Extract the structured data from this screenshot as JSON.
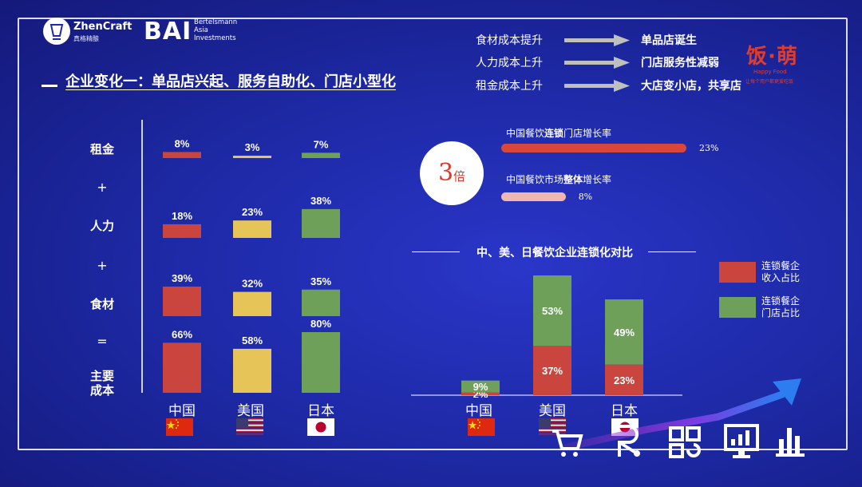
{
  "header": {
    "zhencraft_name": "ZhenCraft",
    "zhencraft_sub": "真格精酿",
    "bai_logo": "BAI",
    "bai_sub": [
      "Bertelsmann",
      "Asia",
      "Investments"
    ],
    "title": "企业变化一：单品店兴起、服务自助化、门店小型化"
  },
  "flows": [
    {
      "cause": "食材成本提升",
      "effect": "单品店诞生"
    },
    {
      "cause": "人力成本上升",
      "effect": "门店服务性减弱"
    },
    {
      "cause": "租金成本上升",
      "effect": "大店变小店，共享店"
    }
  ],
  "brand": {
    "name": "饭·萌",
    "sub": "Happy Food",
    "tagline": "让每个用户都更爱吃饭"
  },
  "colors": {
    "china": "#c9453d",
    "usa": "#e6c457",
    "japan": "#6ea05a",
    "bg": "#1e2aa8",
    "growth_bar": "#d9473a",
    "growth_bar_light": "#f0b7b2"
  },
  "growth": {
    "multiple_number": "3",
    "multiple_unit": "倍",
    "items": [
      {
        "label_pre": "中国餐饮",
        "label_bold": "连锁",
        "label_post": "门店增长率",
        "value_label": "23%",
        "value": 23
      },
      {
        "label_pre": "中国餐饮市场",
        "label_bold": "整体",
        "label_post": "增长率",
        "value_label": "8%",
        "value": 8
      }
    ]
  },
  "cost_chart": {
    "rows": [
      "租金",
      "+",
      "人力",
      "+",
      "食材",
      "=",
      "主要成本"
    ]
  },
  "chain_chart": {
    "title": "中、美、日餐饮企业连锁化对比",
    "legend": [
      "连锁餐企收入占比",
      "连锁餐企门店占比"
    ],
    "legend_lines": [
      [
        "连锁餐企",
        "收入占比"
      ],
      [
        "连锁餐企",
        "门店占比"
      ]
    ]
  },
  "countries": [
    "中国",
    "美国",
    "日本"
  ],
  "chart_data": [
    {
      "type": "bar",
      "title": "",
      "categories": [
        "中国",
        "美国",
        "日本"
      ],
      "panels": [
        {
          "name": "租金",
          "values": [
            8,
            3,
            7
          ],
          "labels": [
            "8%",
            "3%",
            "7%"
          ]
        },
        {
          "name": "人力",
          "values": [
            18,
            23,
            38
          ],
          "labels": [
            "18%",
            "23%",
            "38%"
          ]
        },
        {
          "name": "食材",
          "values": [
            39,
            32,
            35
          ],
          "labels": [
            "39%",
            "32%",
            "35%"
          ]
        },
        {
          "name": "主要成本",
          "values": [
            66,
            58,
            80
          ],
          "labels": [
            "66%",
            "58%",
            "80%"
          ]
        }
      ],
      "colors": [
        "#c9453d",
        "#e6c457",
        "#6ea05a"
      ]
    },
    {
      "type": "bar",
      "stacked": true,
      "title": "中、美、日餐饮企业连锁化对比",
      "categories": [
        "中国",
        "美国",
        "日本"
      ],
      "series": [
        {
          "name": "连锁餐企收入占比",
          "values": [
            2,
            37,
            23
          ],
          "labels": [
            "2%",
            "37%",
            "23%"
          ],
          "color": "#c9453d"
        },
        {
          "name": "连锁餐企门店占比",
          "values": [
            9,
            53,
            49
          ],
          "labels": [
            "9%",
            "53%",
            "49%"
          ],
          "color": "#6ea05a"
        }
      ],
      "legend": "right"
    },
    {
      "type": "bar",
      "orientation": "horizontal",
      "categories": [
        "中国餐饮连锁门店增长率",
        "中国餐饮市场整体增长率"
      ],
      "values": [
        23,
        8
      ],
      "labels": [
        "23%",
        "8%"
      ]
    }
  ]
}
